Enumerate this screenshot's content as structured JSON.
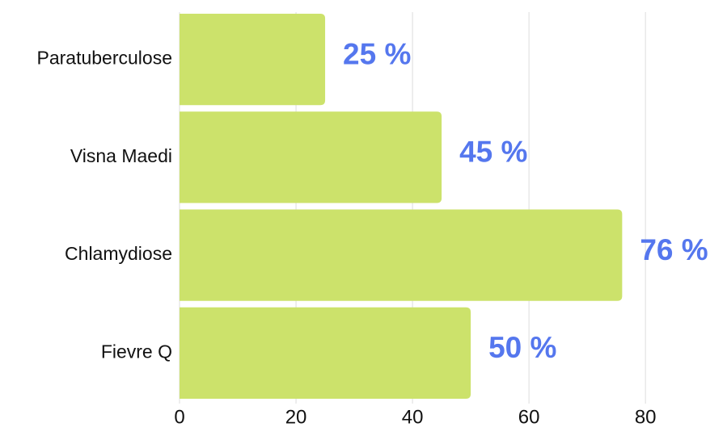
{
  "chart_data": {
    "type": "barh",
    "categories": [
      "Paratuberculose",
      "Visna Maedi",
      "Chlamydiose",
      "Fievre Q"
    ],
    "values": [
      25,
      45,
      76,
      50
    ],
    "value_labels": [
      "25 %",
      "45 %",
      "76 %",
      "50 %"
    ],
    "color": "#cce26b",
    "label_color": "#5577ee",
    "xlim": [
      0,
      94
    ],
    "xticks": [
      0,
      20,
      40,
      60,
      80
    ],
    "grid": true
  }
}
